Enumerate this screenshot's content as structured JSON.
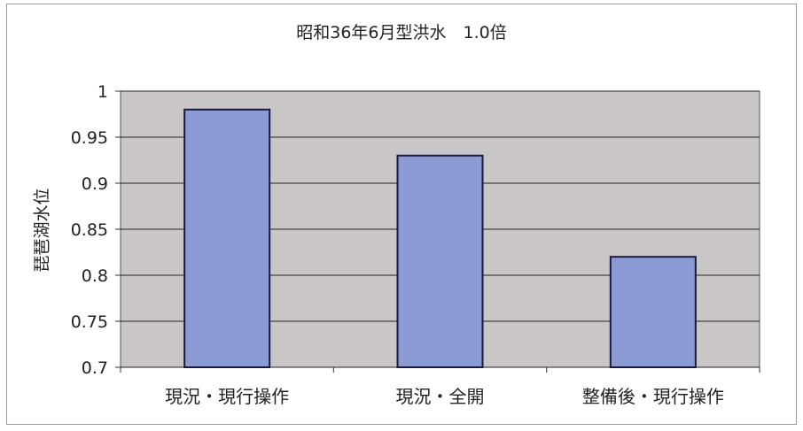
{
  "chart_data": {
    "type": "bar",
    "title": "昭和36年6月型洪水　1.0倍",
    "xlabel": "",
    "ylabel": "琵琶湖水位",
    "categories": [
      "現況・現行操作",
      "現況・全開",
      "整備後・現行操作"
    ],
    "series": [
      {
        "values": [
          0.98,
          0.93,
          0.82
        ]
      }
    ],
    "ylim": [
      0.7,
      1.0
    ],
    "y_ticks": [
      {
        "value": 0.7,
        "label": "0.7"
      },
      {
        "value": 0.75,
        "label": "0.75"
      },
      {
        "value": 0.8,
        "label": "0.8"
      },
      {
        "value": 0.85,
        "label": "0.85"
      },
      {
        "value": 0.9,
        "label": "0.9"
      },
      {
        "value": 0.95,
        "label": "0.95"
      },
      {
        "value": 1.0,
        "label": "1"
      }
    ],
    "grid": true,
    "legend": "none",
    "colors": {
      "bar_fill": "#8c9bd6",
      "bar_stroke": "#1a1a40",
      "plot_background": "#c9c6c8",
      "gridline": "#222222"
    }
  }
}
